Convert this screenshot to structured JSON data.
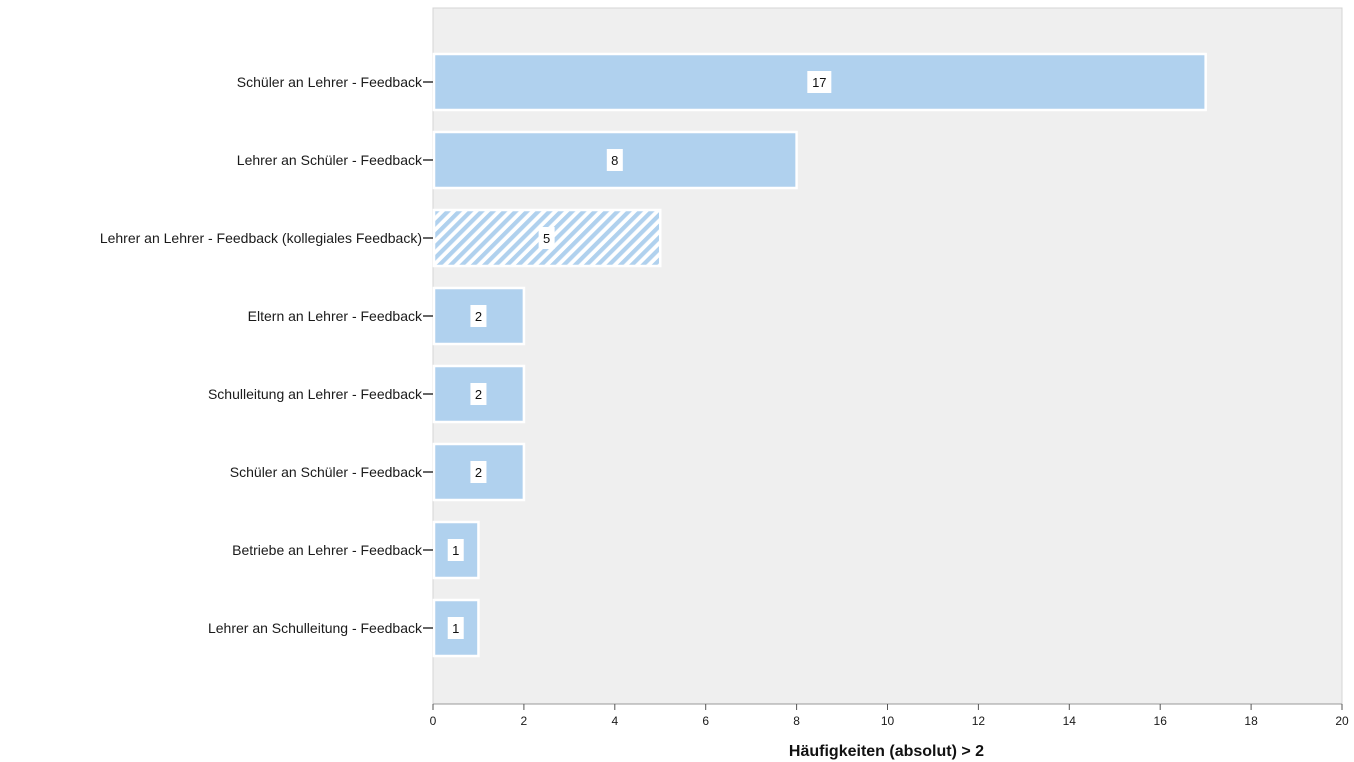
{
  "chart_data": {
    "type": "bar",
    "orientation": "horizontal",
    "categories": [
      "Schüler an Lehrer - Feedback",
      "Lehrer an Schüler - Feedback",
      "Lehrer an Lehrer - Feedback (kollegiales Feedback)",
      "Eltern an Lehrer - Feedback",
      "Schulleitung an Lehrer - Feedback",
      "Schüler an Schüler - Feedback",
      "Betriebe an Lehrer - Feedback",
      "Lehrer an Schulleitung - Feedback"
    ],
    "values": [
      17,
      8,
      5,
      2,
      2,
      2,
      1,
      1
    ],
    "value_labels": [
      "17",
      "8",
      "5",
      "2",
      "2",
      "2",
      "1",
      "1"
    ],
    "hatched": [
      false,
      false,
      true,
      false,
      false,
      false,
      false,
      false
    ],
    "xlabel": "Häufigkeiten (absolut) > 2",
    "ylabel": "",
    "xlim": [
      0,
      20
    ],
    "x_ticks": [
      "0",
      "2",
      "4",
      "6",
      "8",
      "10",
      "12",
      "14",
      "16",
      "18",
      "20"
    ],
    "grid": false,
    "legend": "none",
    "colors": {
      "bar_fill": "#b0d1ee",
      "bar_stroke": "#ffffff",
      "plot_background": "#efefef",
      "axis": "#9a9a9a"
    }
  }
}
